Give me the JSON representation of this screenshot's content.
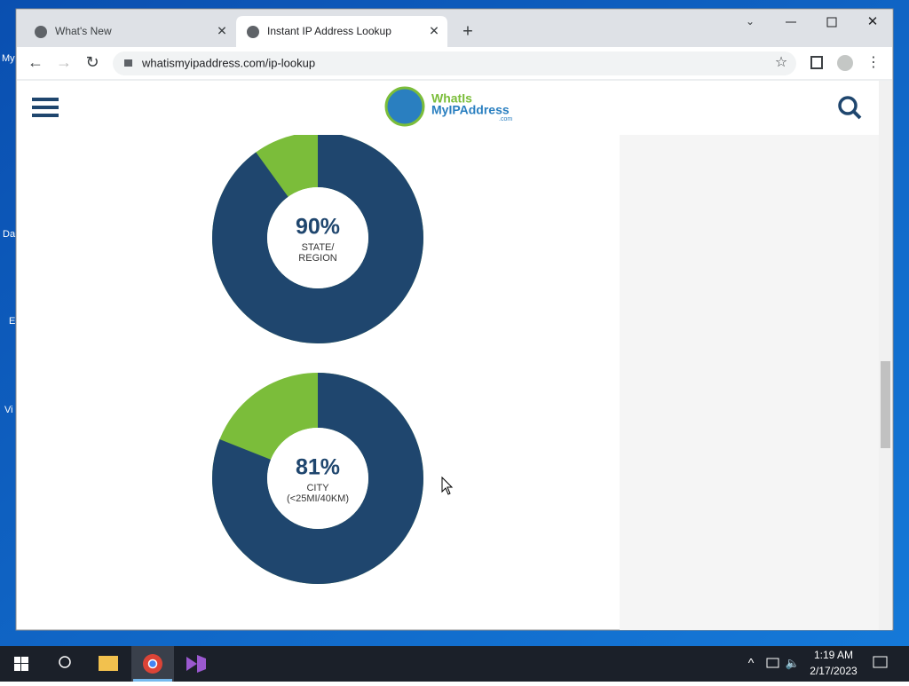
{
  "desktop": {
    "icons": [
      "My",
      "Da",
      "E",
      "Vi"
    ]
  },
  "browser": {
    "tabs": [
      "What's New",
      "Instant IP Address Lookup"
    ],
    "url": "whatismyipaddress.com/ip-lookup"
  },
  "site": {
    "logo": [
      "WhatIs",
      "MyIPAddress",
      ".com"
    ]
  },
  "charts": [
    {
      "type": "donut",
      "value": 90,
      "value_label": "90%",
      "caption": [
        "STATE/",
        "REGION"
      ],
      "color": "#1f466e",
      "rest_color": "#7bbd3a"
    },
    {
      "type": "donut",
      "value": 81,
      "value_label": "81%",
      "caption": [
        "CITY",
        "(<25MI/40KM)"
      ],
      "color": "#1f466e",
      "rest_color": "#7bbd3a"
    }
  ],
  "taskbar": {
    "time": "1:19 AM",
    "date": "2/17/2023"
  }
}
